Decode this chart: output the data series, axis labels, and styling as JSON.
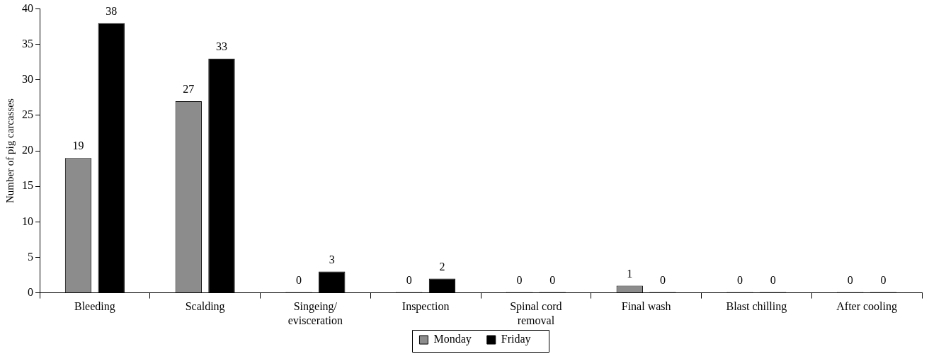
{
  "chart_data": {
    "type": "bar",
    "categories": [
      "Bleeding",
      "Scalding",
      "Singeing/ evisceration",
      "Inspection",
      "Spinal cord removal",
      "Final wash",
      "Blast chilling",
      "After cooling"
    ],
    "series": [
      {
        "name": "Monday",
        "color": "#8c8c8c",
        "values": [
          19,
          27,
          0,
          0,
          0,
          1,
          0,
          0
        ]
      },
      {
        "name": "Friday",
        "color": "#000000",
        "values": [
          38,
          33,
          3,
          2,
          0,
          0,
          0,
          0
        ]
      }
    ],
    "ylabel": "Number of pig carcasses",
    "ylim": [
      0,
      40
    ],
    "yticks": [
      0,
      5,
      10,
      15,
      20,
      25,
      30,
      35,
      40
    ],
    "data_labels": true,
    "legend": "bottom"
  }
}
